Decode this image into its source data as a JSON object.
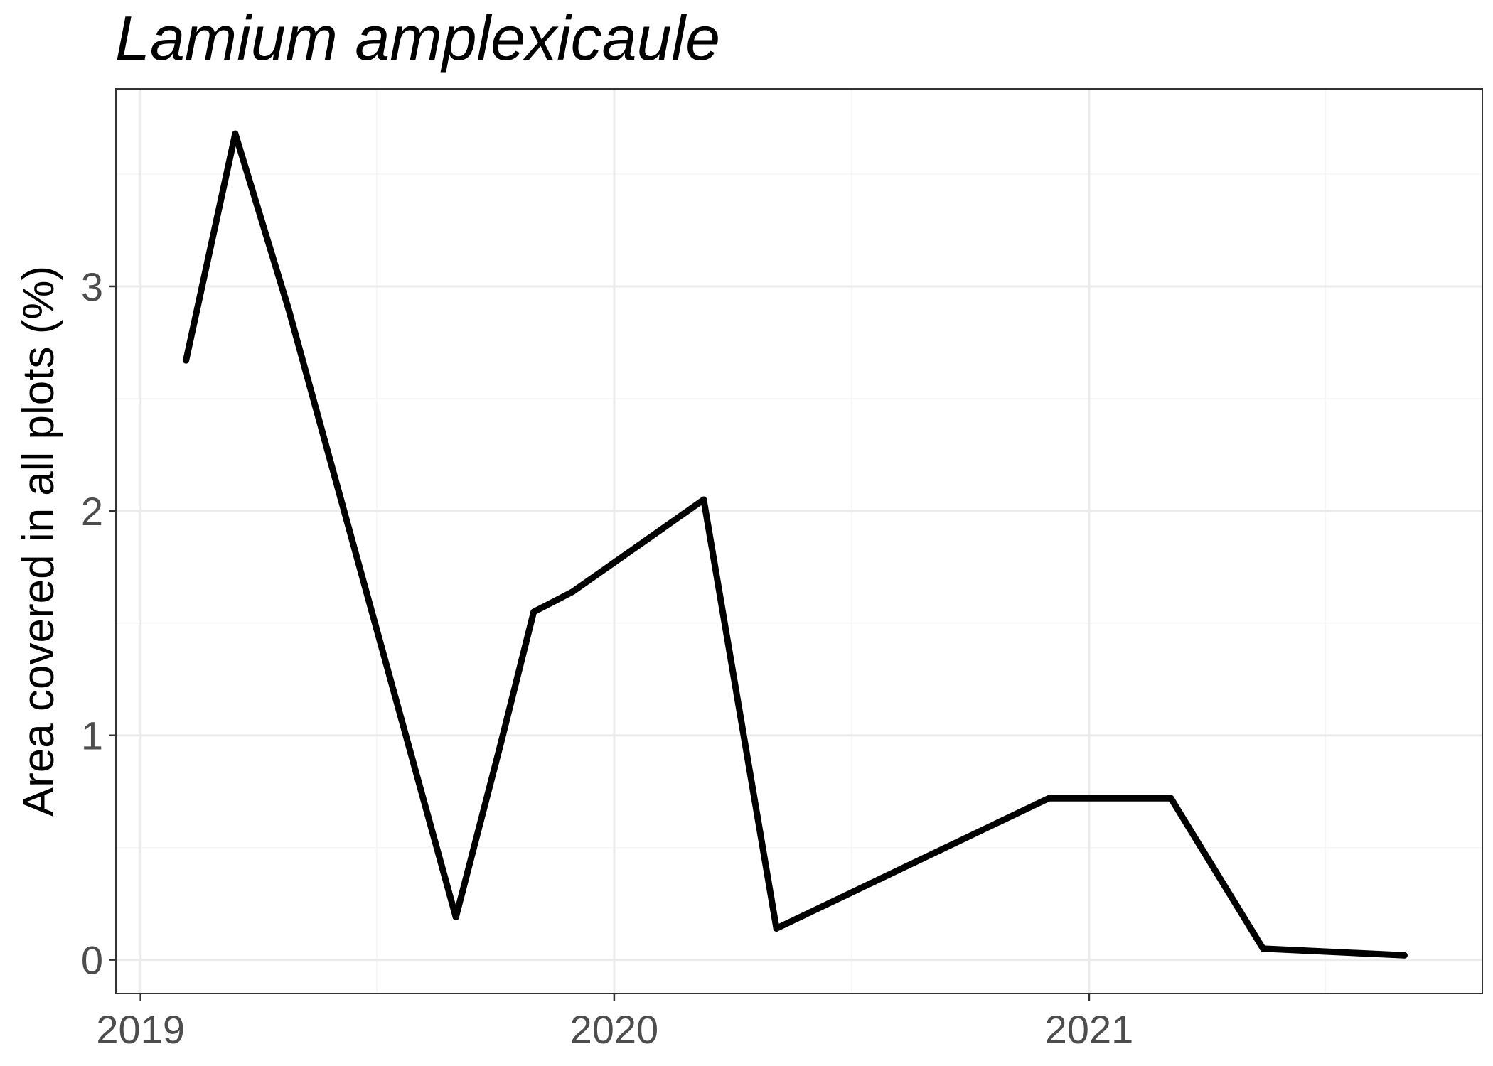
{
  "chart_data": {
    "type": "line",
    "title": "Lamium amplexicaule",
    "xlabel": "",
    "ylabel": "Area covered in all plots (%)",
    "x_ticks": [
      "2019",
      "2020",
      "2021"
    ],
    "y_ticks": [
      "0",
      "1",
      "2",
      "3"
    ],
    "xlim": [
      "2018-12-13",
      "2021-10-31"
    ],
    "ylim": [
      -0.15,
      3.88
    ],
    "grid": true,
    "legend": "none",
    "line_color": "#000000",
    "series": [
      {
        "x": [
          "2019-02-05",
          "2019-03-15",
          "2019-04-25",
          "2019-09-01",
          "2019-10-05",
          "2019-10-31",
          "2019-11-30",
          "2020-03-10",
          "2020-05-05",
          "2020-12-01",
          "2021-03-05",
          "2021-05-15",
          "2021-09-01"
        ],
        "y": [
          2.67,
          3.68,
          2.9,
          0.19,
          0.95,
          1.55,
          1.64,
          2.05,
          0.14,
          0.72,
          0.72,
          0.05,
          0.02
        ]
      }
    ]
  }
}
